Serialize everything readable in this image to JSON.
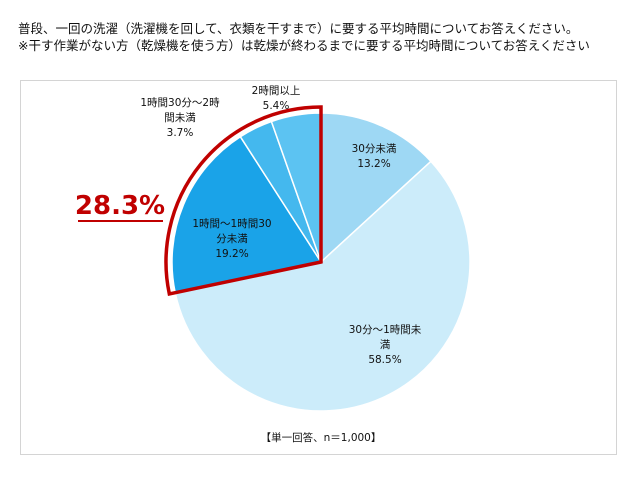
{
  "header": {
    "title_line1": "普段、一回の洗濯（洗濯機を回して、衣類を干すまで）に要する平均時間についてお答えください。",
    "title_line2": "※干す作業がない方（乾燥機を使う方）は乾燥が終わるまでに要する平均時間についてお答えください"
  },
  "chart_data": {
    "type": "pie",
    "slices": [
      {
        "label_lines": [
          "30分未満"
        ],
        "value": 13.2,
        "value_label": "13.2%",
        "color": "#9ed8f4"
      },
      {
        "label_lines": [
          "30分～1時間未",
          "満"
        ],
        "value": 58.5,
        "value_label": "58.5%",
        "color": "#ccecfa"
      },
      {
        "label_lines": [
          "1時間～1時間30",
          "分未満"
        ],
        "value": 19.2,
        "value_label": "19.2%",
        "color": "#1aa3e8"
      },
      {
        "label_lines": [
          "1時間30分～2時",
          "間未満"
        ],
        "value": 3.7,
        "value_label": "3.7%",
        "color": "#44b8ee"
      },
      {
        "label_lines": [
          "2時間以上"
        ],
        "value": 5.4,
        "value_label": "5.4%",
        "color": "#5cc3f2"
      }
    ],
    "highlight": {
      "value_label": "28.3%",
      "color": "#c00000",
      "slices": [
        2,
        3,
        4
      ]
    },
    "footnote": "【単一回答、n＝1,000】"
  }
}
